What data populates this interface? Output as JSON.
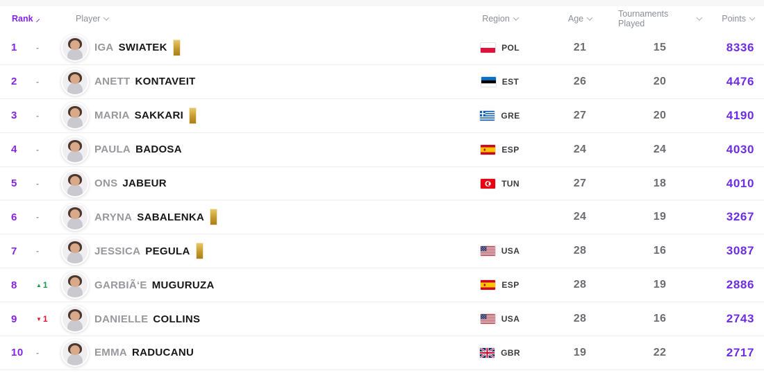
{
  "accent": {
    "rank_purple": "#8524e2",
    "points_purple": "#6d2ce6",
    "up_green": "#179a49",
    "down_red": "#e8112d",
    "gold": "#c49a2e"
  },
  "header": {
    "rank": {
      "label": "Rank",
      "sort": "ascending"
    },
    "player": {
      "label": "Player"
    },
    "region": {
      "label": "Region"
    },
    "age": {
      "label": "Age"
    },
    "tournaments": {
      "label": "Tournaments Played"
    },
    "points": {
      "label": "Points"
    }
  },
  "rows": [
    {
      "rank": "1",
      "movement_dir": "none",
      "movement_label": "-",
      "first_name": "IGA",
      "last_name": "SWIATEK",
      "gold_badge": true,
      "region_code": "POL",
      "age": "21",
      "tournaments_played": "15",
      "points": "8336"
    },
    {
      "rank": "2",
      "movement_dir": "none",
      "movement_label": "-",
      "first_name": "ANETT",
      "last_name": "KONTAVEIT",
      "gold_badge": false,
      "region_code": "EST",
      "age": "26",
      "tournaments_played": "20",
      "points": "4476"
    },
    {
      "rank": "3",
      "movement_dir": "none",
      "movement_label": "-",
      "first_name": "MARIA",
      "last_name": "SAKKARI",
      "gold_badge": true,
      "region_code": "GRE",
      "age": "27",
      "tournaments_played": "20",
      "points": "4190"
    },
    {
      "rank": "4",
      "movement_dir": "none",
      "movement_label": "-",
      "first_name": "PAULA",
      "last_name": "BADOSA",
      "gold_badge": false,
      "region_code": "ESP",
      "age": "24",
      "tournaments_played": "24",
      "points": "4030"
    },
    {
      "rank": "5",
      "movement_dir": "none",
      "movement_label": "-",
      "first_name": "ONS",
      "last_name": "JABEUR",
      "gold_badge": false,
      "region_code": "TUN",
      "age": "27",
      "tournaments_played": "18",
      "points": "4010"
    },
    {
      "rank": "6",
      "movement_dir": "none",
      "movement_label": "-",
      "first_name": "ARYNA",
      "last_name": "SABALENKA",
      "gold_badge": true,
      "region_code": "",
      "age": "24",
      "tournaments_played": "19",
      "points": "3267"
    },
    {
      "rank": "7",
      "movement_dir": "none",
      "movement_label": "-",
      "first_name": "JESSICA",
      "last_name": "PEGULA",
      "gold_badge": true,
      "region_code": "USA",
      "age": "28",
      "tournaments_played": "16",
      "points": "3087"
    },
    {
      "rank": "8",
      "movement_dir": "up",
      "movement_label": "1",
      "first_name": "GARBIÃ‘E",
      "last_name": "MUGURUZA",
      "gold_badge": false,
      "region_code": "ESP",
      "age": "28",
      "tournaments_played": "19",
      "points": "2886"
    },
    {
      "rank": "9",
      "movement_dir": "down",
      "movement_label": "1",
      "first_name": "DANIELLE",
      "last_name": "COLLINS",
      "gold_badge": false,
      "region_code": "USA",
      "age": "28",
      "tournaments_played": "16",
      "points": "2743"
    },
    {
      "rank": "10",
      "movement_dir": "none",
      "movement_label": "-",
      "first_name": "EMMA",
      "last_name": "RADUCANU",
      "gold_badge": false,
      "region_code": "GBR",
      "age": "19",
      "tournaments_played": "22",
      "points": "2717"
    }
  ]
}
